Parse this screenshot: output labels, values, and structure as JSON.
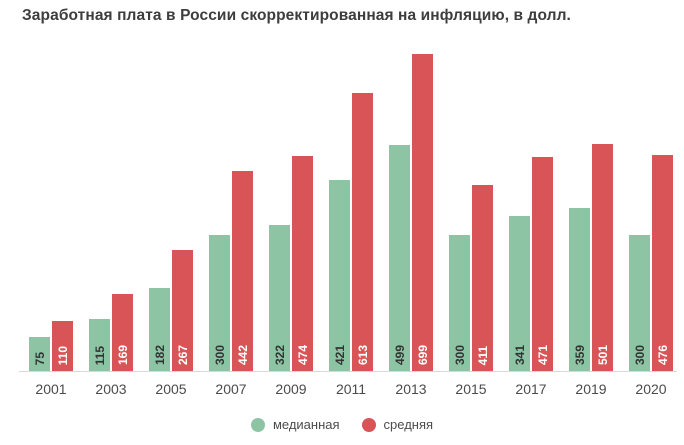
{
  "title": "Заработная плата в России скорректированная на инфляцию, в долл.",
  "chart_data": {
    "type": "bar",
    "title": "Заработная плата в России скорректированная на инфляцию, в долл.",
    "categories": [
      "2001",
      "2003",
      "2005",
      "2007",
      "2009",
      "2011",
      "2013",
      "2015",
      "2017",
      "2019",
      "2020"
    ],
    "series": [
      {
        "name": "медианная",
        "color": "#8dc4a4",
        "label_color": "#333333",
        "values": [
          75,
          115,
          182,
          300,
          322,
          421,
          499,
          300,
          341,
          359,
          300
        ]
      },
      {
        "name": "средняя",
        "color": "#d95457",
        "label_color": "#ffffff",
        "values": [
          110,
          169,
          267,
          442,
          474,
          613,
          699,
          411,
          471,
          501,
          476
        ]
      }
    ],
    "xlabel": "",
    "ylabel": "",
    "ylim": [
      0,
      699
    ],
    "grid": false,
    "y_axis_visible": false,
    "bar_value_labels": "inside-rotated",
    "legend_position": "bottom"
  },
  "legend": {
    "items": [
      {
        "label": "медианная",
        "color": "#8dc4a4"
      },
      {
        "label": "средняя",
        "color": "#d95457"
      }
    ]
  },
  "axis": {
    "baseline_color": "#d9d9d9"
  }
}
